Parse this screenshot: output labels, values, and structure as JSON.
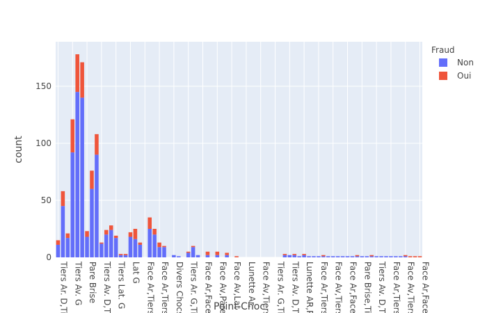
{
  "chart_data": {
    "type": "bar",
    "barmode": "stack",
    "xlabel": "Point Choc",
    "ylabel": "count",
    "ylim": [
      0,
      189
    ],
    "y_ticks": [
      0,
      50,
      100,
      150
    ],
    "x_tick_labels": [
      "Tiers Ar. D,Ti",
      "Tiers Av. G",
      "Pare Brise",
      "Tiers Av. D,Ti",
      "Tiers Lat. G",
      "Lat G",
      "Face Ar,Tiers",
      "Face Ar,Tiers",
      "Divers Chocs",
      "Tiers Ar. G,Ti",
      "Face Ar,Face",
      "Face Av,Pare",
      "Face Av,Lat",
      "Lunette Ar,",
      "Face Av,Tiers",
      "Tiers Ar. G,Ti",
      "Tiers Av. D,Ti",
      "Lunette AR,P",
      "Face Ar,Tiers",
      "Face Av,Tiers",
      "Face Ar,Face",
      "Pare Brise,Ti",
      "Tiers Av. D,Ti",
      "Face Ar,Tiers",
      "Face Av,Tiers",
      "Face Ar,Face"
    ],
    "legend": {
      "title": "Fraud",
      "position": "top-right"
    },
    "grid": true,
    "bars": 76,
    "series": [
      {
        "name": "Non",
        "color": "#636efa",
        "values": [
          11,
          45,
          17,
          92,
          145,
          140,
          18,
          60,
          90,
          12,
          20,
          24,
          17,
          2,
          2,
          18,
          16,
          11,
          0,
          25,
          20,
          9,
          9,
          0,
          2,
          1,
          0,
          4,
          9,
          2,
          0,
          2,
          0,
          2,
          0,
          2,
          0,
          0,
          0,
          0,
          0,
          0,
          0,
          0,
          0,
          0,
          0,
          2,
          2,
          2,
          1,
          2,
          1,
          1,
          1,
          1,
          1,
          1,
          1,
          1,
          1,
          1,
          1,
          1,
          1,
          1,
          1,
          1,
          1,
          1,
          1,
          1,
          1,
          0,
          0,
          0
        ]
      },
      {
        "name": "Oui",
        "color": "#ef553b",
        "values": [
          4,
          13,
          4,
          29,
          33,
          31,
          5,
          16,
          18,
          1,
          4,
          4,
          2,
          1,
          1,
          4,
          9,
          2,
          0,
          10,
          5,
          4,
          1,
          0,
          0,
          0,
          0,
          1,
          1,
          0,
          0,
          3,
          0,
          3,
          0,
          2,
          0,
          1,
          0,
          0,
          0,
          0,
          0,
          0,
          0,
          0,
          0,
          1,
          0,
          1,
          0,
          1,
          0,
          0,
          0,
          1,
          0,
          0,
          0,
          0,
          0,
          0,
          1,
          0,
          0,
          1,
          0,
          0,
          0,
          0,
          0,
          0,
          1,
          1,
          1,
          1
        ]
      }
    ]
  }
}
